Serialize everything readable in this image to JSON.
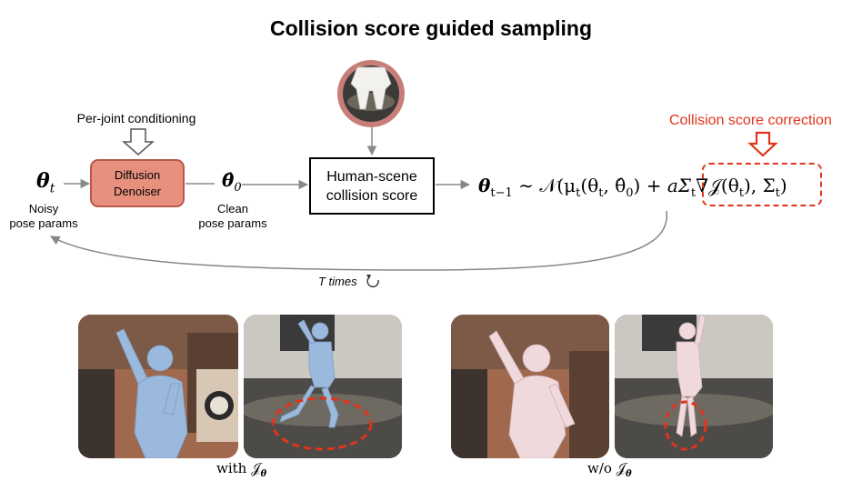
{
  "title": "Collision score guided sampling",
  "conditioning_label": "Per-joint conditioning",
  "denoiser": {
    "line1": "Diffusion",
    "line2": "Denoiser"
  },
  "theta_t": "θ",
  "theta_t_sub": "t",
  "noisy_line1": "Noisy",
  "noisy_line2": "pose params",
  "theta0": "θ̂",
  "theta0_sub": "0",
  "clean_line1": "Clean",
  "clean_line2": "pose params",
  "collision_box": {
    "line1": "Human-scene",
    "line2": "collision score"
  },
  "correction_label": "Collision score correction",
  "equation": {
    "lhs": "θ",
    "lhs_sub": "t−1",
    "rel": " ∼ 𝒩(μ",
    "mu_sub": "t",
    "args": "(θ",
    "args_sub": "t",
    "args2": ", θ̂",
    "args2_sub": "0",
    "close": ") + ",
    "corr": "aΣ",
    "corr_sub": "t",
    "corr2": "∇𝒥(θ",
    "corr2_sub": "t",
    "corr3": ")",
    "tail": ", Σ",
    "tail_sub": "t",
    "tail2": ")"
  },
  "t_times": "T times",
  "caption_with": "with 𝒥",
  "caption_with_sub": "θ",
  "caption_without": "w/o 𝒥",
  "caption_without_sub": "θ",
  "colors": {
    "accent": "#e0341c",
    "denoiser_fill": "#e8907e",
    "body_blue": "#9bb9dc",
    "body_pink": "#efd9dc"
  }
}
